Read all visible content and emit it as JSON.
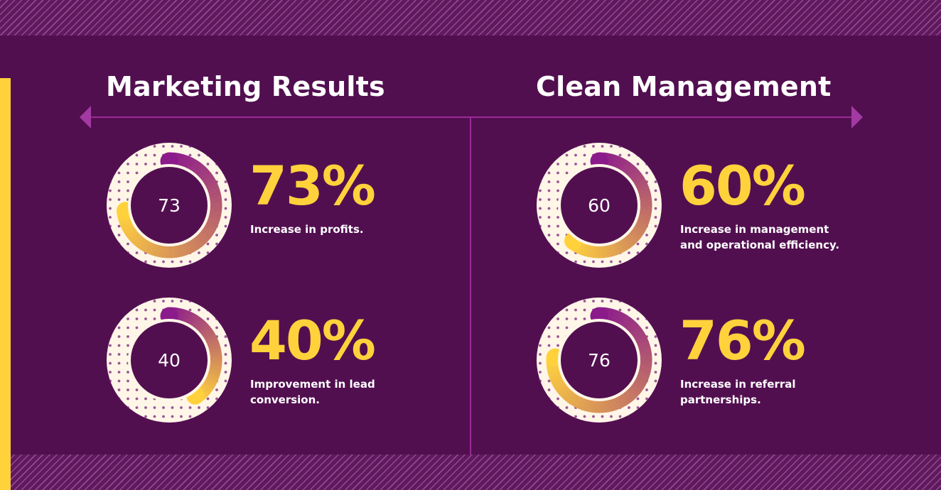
{
  "sections": [
    {
      "title": "Marketing Results",
      "items": [
        {
          "value": 73,
          "center_label": "73",
          "big_label": "73%",
          "description": "Increase in profits."
        },
        {
          "value": 40,
          "center_label": "40",
          "big_label": "40%",
          "description": "Improvement in lead conversion."
        }
      ]
    },
    {
      "title": "Clean Management",
      "items": [
        {
          "value": 60,
          "center_label": "60",
          "big_label": "60%",
          "description": "Increase in management and operational efficiency."
        },
        {
          "value": 76,
          "center_label": "76",
          "big_label": "76%",
          "description": "Increase in referral partnerships."
        }
      ]
    }
  ],
  "chart_data": {
    "type": "pie",
    "variant": "donut-progress",
    "max": 100,
    "unit": "%",
    "colors": {
      "arc_start": "#8b1a8b",
      "arc_end": "#ffd23c",
      "background": "#520f50",
      "accent": "#ffd23c",
      "ring_bg": "#fff6e8",
      "dots": "#7a1f78"
    },
    "series": [
      {
        "name": "Marketing Results",
        "categories": [
          "Increase in profits.",
          "Improvement in lead conversion."
        ],
        "values": [
          73,
          40
        ]
      },
      {
        "name": "Clean Management",
        "categories": [
          "Increase in management and operational efficiency.",
          "Increase in referral partnerships."
        ],
        "values": [
          60,
          76
        ]
      }
    ]
  }
}
